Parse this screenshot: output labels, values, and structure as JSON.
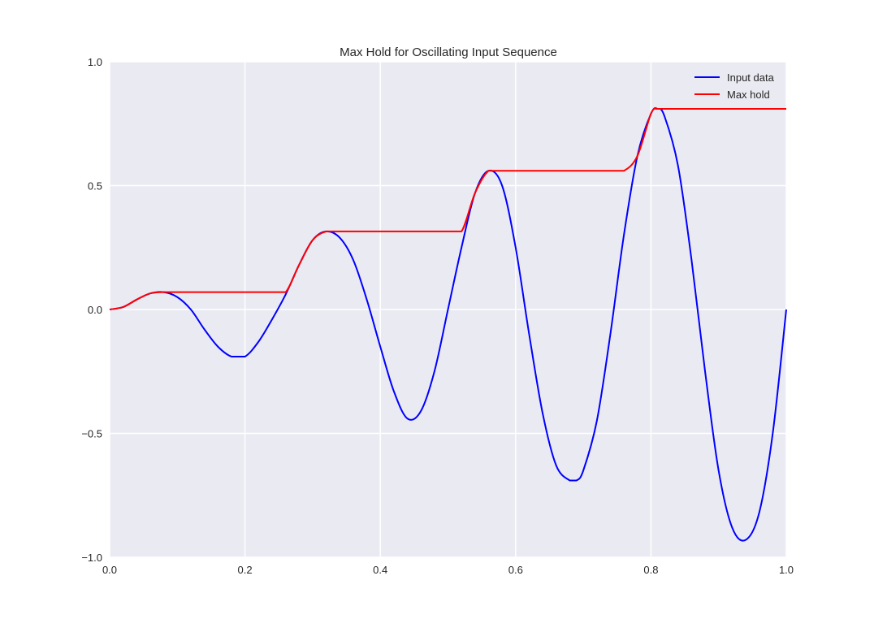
{
  "chart_data": {
    "type": "line",
    "title": "Max Hold for Oscillating Input Sequence",
    "xlabel": "",
    "ylabel": "",
    "xlim": [
      0.0,
      1.0
    ],
    "ylim": [
      -1.0,
      1.0
    ],
    "grid": true,
    "legend_position": "top-right",
    "x_ticks": [
      0.0,
      0.2,
      0.4,
      0.6,
      0.8,
      1.0
    ],
    "x_tick_labels": [
      "0.0",
      "0.2",
      "0.4",
      "0.6",
      "0.8",
      "1.0"
    ],
    "y_ticks": [
      -1.0,
      -0.5,
      0.0,
      0.5,
      1.0
    ],
    "y_tick_labels": [
      "−1.0",
      "−0.5",
      "0.0",
      "0.5",
      "1.0"
    ],
    "series": [
      {
        "name": "Input data",
        "color": "#0000ff",
        "x": [
          0,
          0.02,
          0.04,
          0.06,
          0.08,
          0.1,
          0.12,
          0.14,
          0.16,
          0.18,
          0.2,
          0.22,
          0.24,
          0.26,
          0.28,
          0.3,
          0.32,
          0.34,
          0.36,
          0.38,
          0.4,
          0.42,
          0.44,
          0.46,
          0.48,
          0.5,
          0.52,
          0.54,
          0.56,
          0.58,
          0.6,
          0.62,
          0.64,
          0.66,
          0.68,
          0.69,
          0.7,
          0.72,
          0.74,
          0.76,
          0.78,
          0.8,
          0.81,
          0.82,
          0.84,
          0.86,
          0.88,
          0.9,
          0.92,
          0.94,
          0.96,
          0.98,
          1.0
        ],
        "y": [
          0,
          0.01,
          0.04,
          0.065,
          0.07,
          0.05,
          0.0,
          -0.08,
          -0.15,
          -0.19,
          -0.19,
          -0.13,
          -0.04,
          0.06,
          0.18,
          0.28,
          0.315,
          0.29,
          0.2,
          0.04,
          -0.15,
          -0.33,
          -0.44,
          -0.41,
          -0.25,
          0.0,
          0.25,
          0.47,
          0.56,
          0.5,
          0.25,
          -0.1,
          -0.42,
          -0.63,
          -0.69,
          -0.69,
          -0.65,
          -0.45,
          -0.1,
          0.3,
          0.62,
          0.79,
          0.81,
          0.78,
          0.58,
          0.2,
          -0.25,
          -0.65,
          -0.88,
          -0.93,
          -0.82,
          -0.5,
          0.0
        ]
      },
      {
        "name": "Max hold",
        "color": "#ff0000",
        "x": [
          0,
          0.02,
          0.04,
          0.06,
          0.08,
          0.1,
          0.12,
          0.14,
          0.16,
          0.18,
          0.2,
          0.22,
          0.24,
          0.26,
          0.28,
          0.3,
          0.32,
          0.34,
          0.36,
          0.38,
          0.4,
          0.42,
          0.44,
          0.46,
          0.48,
          0.5,
          0.52,
          0.54,
          0.56,
          0.58,
          0.6,
          0.62,
          0.64,
          0.66,
          0.68,
          0.69,
          0.7,
          0.72,
          0.74,
          0.76,
          0.78,
          0.8,
          0.81,
          0.82,
          0.84,
          0.86,
          0.88,
          0.9,
          0.92,
          0.94,
          0.96,
          0.98,
          1.0
        ],
        "y": [
          0,
          0.01,
          0.04,
          0.065,
          0.07,
          0.07,
          0.07,
          0.07,
          0.07,
          0.07,
          0.07,
          0.07,
          0.07,
          0.07,
          0.18,
          0.28,
          0.315,
          0.315,
          0.315,
          0.315,
          0.315,
          0.315,
          0.315,
          0.315,
          0.315,
          0.315,
          0.315,
          0.47,
          0.56,
          0.56,
          0.56,
          0.56,
          0.56,
          0.56,
          0.56,
          0.56,
          0.56,
          0.56,
          0.56,
          0.56,
          0.62,
          0.79,
          0.81,
          0.81,
          0.81,
          0.81,
          0.81,
          0.81,
          0.81,
          0.81,
          0.81,
          0.81,
          0.81
        ]
      }
    ]
  }
}
